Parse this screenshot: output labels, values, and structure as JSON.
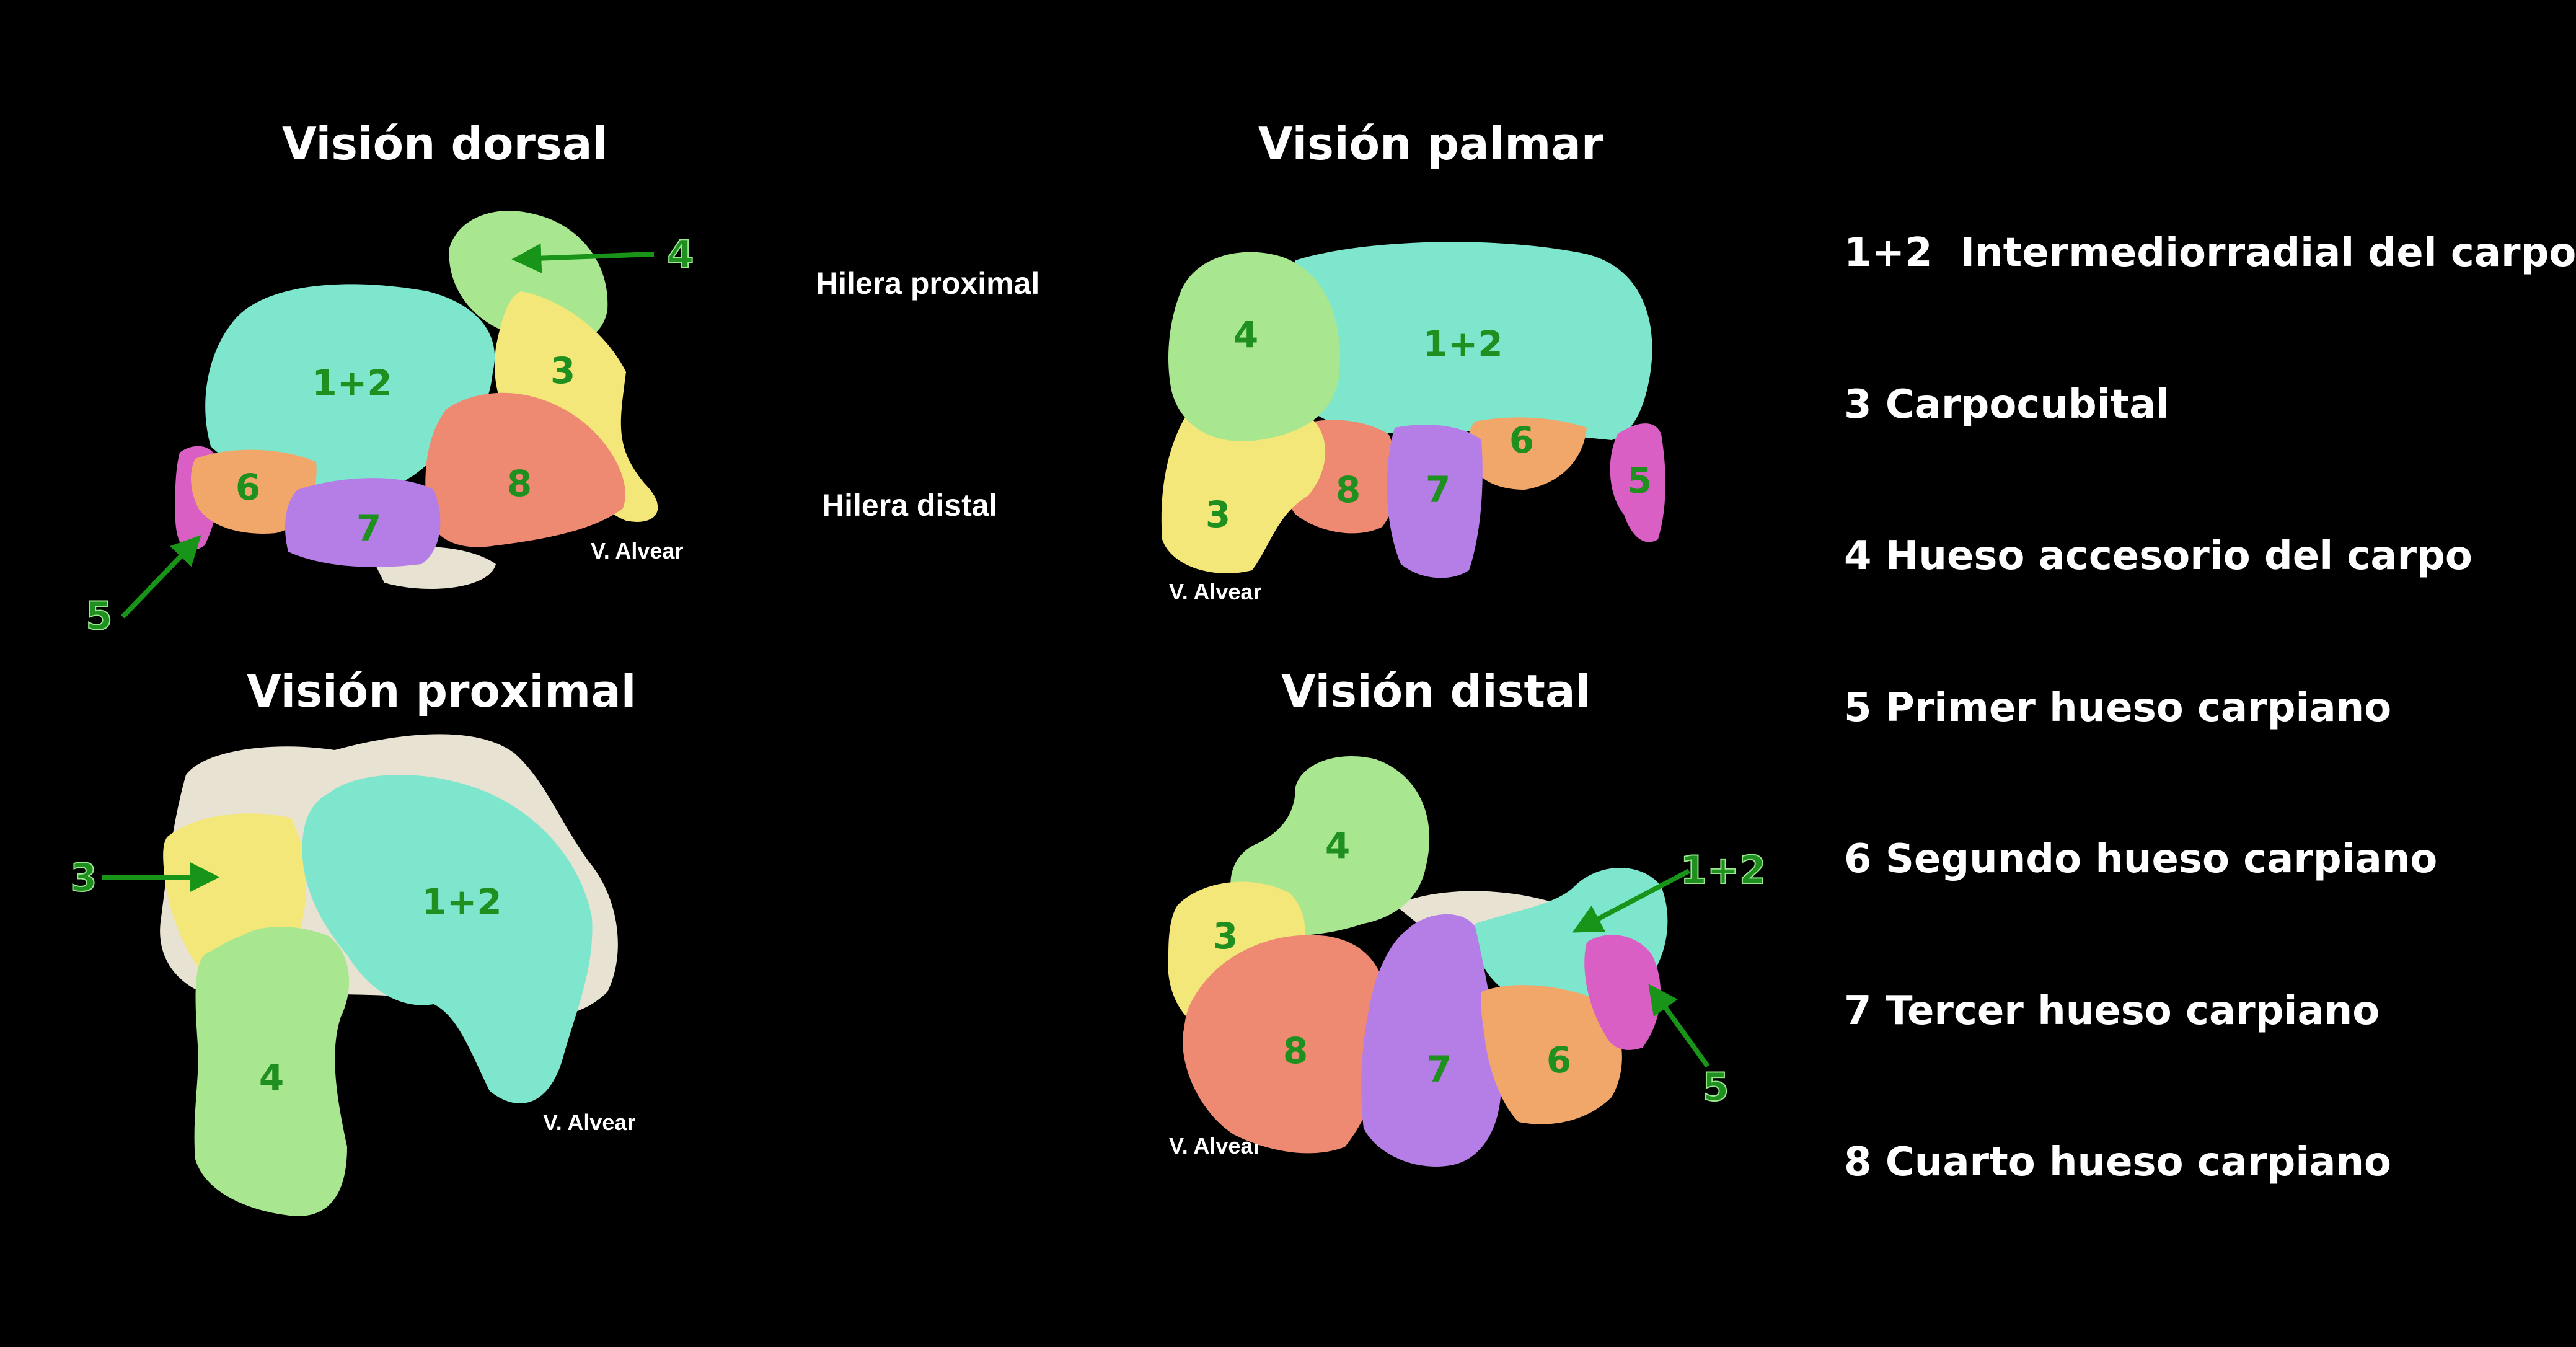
{
  "views": {
    "dorsal": {
      "title": "Visión dorsal",
      "credit": "V. Alvear",
      "labels": {
        "b12": "1+2",
        "b3": "3",
        "b4": "4",
        "b5": "5",
        "b6": "6",
        "b7": "7",
        "b8": "8"
      }
    },
    "palmar": {
      "title": "Visión palmar",
      "credit": "V. Alvear",
      "labels": {
        "b12": "1+2",
        "b3": "3",
        "b4": "4",
        "b5": "5",
        "b6": "6",
        "b7": "7",
        "b8": "8"
      }
    },
    "proximal": {
      "title": "Visión proximal",
      "credit": "V. Alvear",
      "labels": {
        "b12": "1+2",
        "b3": "3",
        "b4": "4"
      }
    },
    "distal": {
      "title": "Visión distal",
      "credit": "V. Alvear",
      "labels": {
        "b12": "1+2",
        "b3": "3",
        "b4": "4",
        "b5": "5",
        "b6": "6",
        "b7": "7",
        "b8": "8"
      }
    }
  },
  "rows": {
    "proximal": "Hilera proximal",
    "distal": "Hilera distal"
  },
  "legend": [
    "1+2  Intermediorradial del carpo",
    "3 Carpocubital",
    "4 Hueso accesorio del carpo",
    "5 Primer hueso carpiano",
    "6 Segundo hueso carpiano",
    "7 Tercer hueso carpiano",
    "8 Cuarto hueso carpiano"
  ],
  "colors": {
    "background": "#000000",
    "bone_1_2": "#7de6cc",
    "bone_3": "#f3e77a",
    "bone_4": "#a8e690",
    "bone_5": "#d95fc4",
    "bone_6": "#f1a76a",
    "bone_7": "#b57de6",
    "bone_8": "#ee8a72",
    "unlabeled_bone": "#e8e2d2",
    "label_green": "#1f8f1f",
    "arrow_green": "#189418"
  }
}
